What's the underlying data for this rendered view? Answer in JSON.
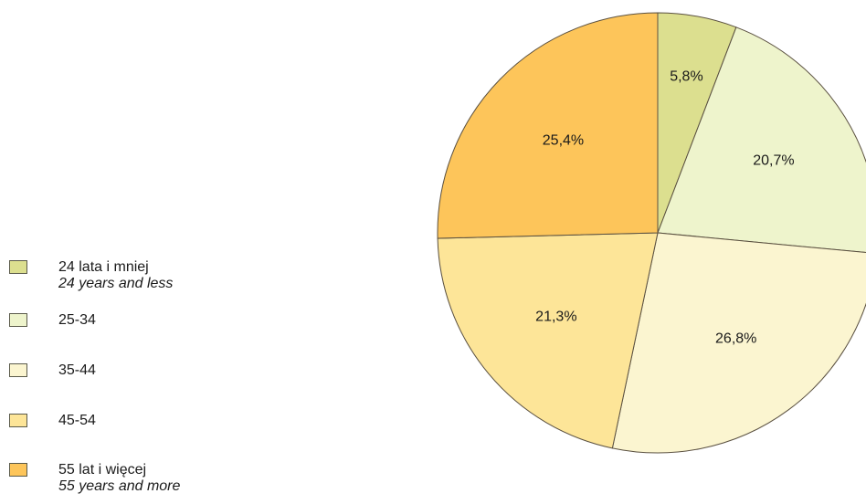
{
  "chart_data": {
    "type": "pie",
    "series": [
      {
        "values": [
          5.8,
          20.7,
          26.8,
          21.3,
          25.4
        ]
      }
    ],
    "slices": [
      {
        "label": "5,8%",
        "value": 5.8,
        "color": "#dcdf8f"
      },
      {
        "label": "20,7%",
        "value": 20.7,
        "color": "#eef4cc"
      },
      {
        "label": "26,8%",
        "value": 26.8,
        "color": "#fbf5d0"
      },
      {
        "label": "21,3%",
        "value": 21.3,
        "color": "#fde598"
      },
      {
        "label": "25,4%",
        "value": 25.4,
        "color": "#fdc55a"
      }
    ],
    "legend_placement": "left",
    "legend": [
      {
        "label": "24 lata i mniej",
        "sublabel": "24 years and less",
        "color": "#dcdf8f"
      },
      {
        "label": "25-34",
        "sublabel": "",
        "color": "#eef4cc"
      },
      {
        "label": "35-44",
        "sublabel": "",
        "color": "#fbf5d0"
      },
      {
        "label": "45-54",
        "sublabel": "",
        "color": "#fde598"
      },
      {
        "label": "55 lat i więcej",
        "sublabel": "55 years and more",
        "color": "#fdc55a"
      }
    ],
    "start_angle": "12 o'clock",
    "direction": "clockwise"
  }
}
